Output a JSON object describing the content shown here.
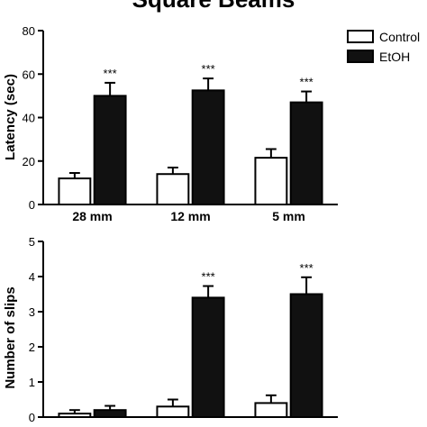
{
  "chart_data": [
    {
      "type": "bar",
      "title": "Square Beams",
      "ylabel": "Latency (sec)",
      "xlabel": "",
      "ylim": [
        0,
        80
      ],
      "yticks": [
        0,
        20,
        40,
        60,
        80
      ],
      "categories": [
        "28 mm",
        "12 mm",
        "5 mm"
      ],
      "series": [
        {
          "name": "Control",
          "color": "#ffffff",
          "values": [
            12,
            14,
            21.5
          ],
          "errors": [
            2.5,
            3,
            4
          ]
        },
        {
          "name": "EtOH",
          "color": "#111111",
          "values": [
            50,
            52.5,
            47
          ],
          "errors": [
            6,
            5.5,
            5
          ]
        }
      ],
      "annotations": [
        "***",
        "***",
        "***"
      ],
      "legend": "top-right"
    },
    {
      "type": "bar",
      "ylabel": "Number of slips",
      "xlabel": "",
      "ylim": [
        0,
        5
      ],
      "yticks": [
        0,
        1,
        2,
        3,
        4,
        5
      ],
      "categories": [
        "",
        "",
        ""
      ],
      "series": [
        {
          "name": "Control",
          "color": "#ffffff",
          "values": [
            0.1,
            0.3,
            0.4
          ],
          "errors": [
            0.1,
            0.2,
            0.22
          ]
        },
        {
          "name": "EtOH",
          "color": "#111111",
          "values": [
            0.2,
            3.4,
            3.5
          ],
          "errors": [
            0.12,
            0.33,
            0.48
          ]
        }
      ],
      "annotations": [
        "",
        "***",
        "***"
      ]
    }
  ]
}
